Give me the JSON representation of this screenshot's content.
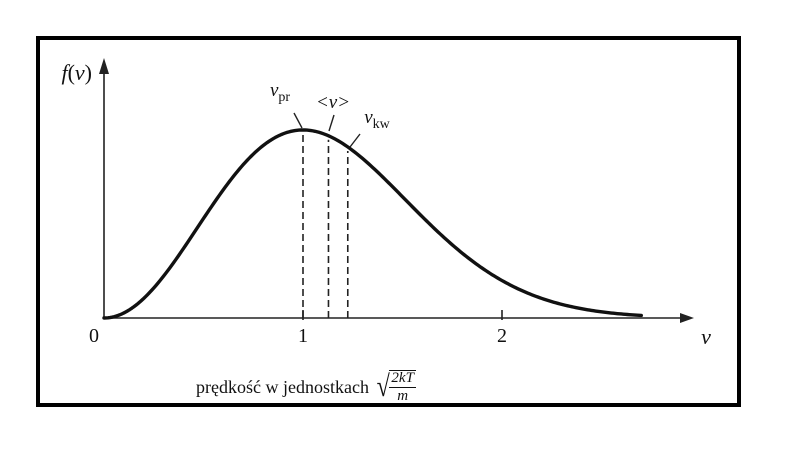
{
  "chart_data": {
    "type": "line",
    "function": "f(v) = (4/sqrt(pi)) * v^2 * exp(-v^2)",
    "ylabel": "f(v)",
    "xlabel": "v",
    "xlabel_caption_prefix": "prędkość w jednostkach",
    "xlabel_unit_numerator": "2kT",
    "xlabel_unit_denominator": "m",
    "xlim": [
      0,
      2.7
    ],
    "ylim": [
      0,
      0.83
    ],
    "x_ticks": [
      {
        "value": 0,
        "label": "0"
      },
      {
        "value": 1,
        "label": "1"
      },
      {
        "value": 2,
        "label": "2"
      }
    ],
    "markers": [
      {
        "name": "v_pr",
        "label": "v",
        "sub": "pr",
        "x": 1.0
      },
      {
        "name": "mean_v",
        "label": "<v>",
        "sub": "",
        "x": 1.128
      },
      {
        "name": "v_kw",
        "label": "v",
        "sub": "kw",
        "x": 1.225
      }
    ],
    "grid": false,
    "legend": "none"
  },
  "colors": {
    "curve": "#111111",
    "frame": "#000000",
    "axes": "#222222"
  }
}
